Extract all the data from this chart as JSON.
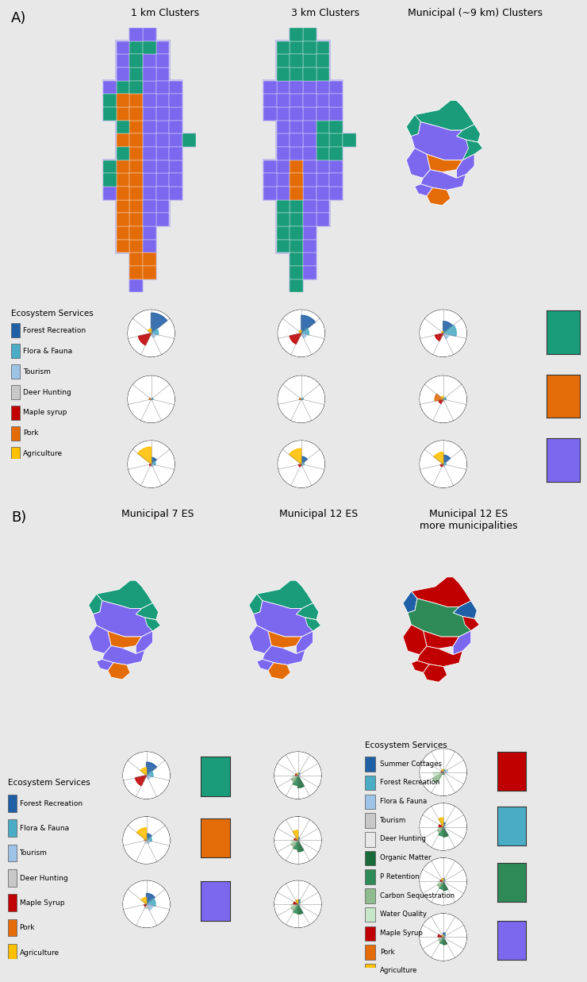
{
  "background_color": "#e8e8e8",
  "map_titles_a": [
    "1 km Clusters",
    "3 km Clusters",
    "Municipal (~9 km) Clusters"
  ],
  "map_titles_b": [
    "Municipal 7 ES",
    "Municipal 12 ES",
    "Municipal 12 ES\nmore municipalities"
  ],
  "legend_a_title": "Ecosystem Services",
  "legend_a_items": [
    [
      "Forest Recreation",
      "#1f5fa6"
    ],
    [
      "Flora & Fauna",
      "#4bacc6"
    ],
    [
      "Tourism",
      "#9dc3e6"
    ],
    [
      "Deer Hunting",
      "#c8c8c8"
    ],
    [
      "Maple syrup",
      "#c00000"
    ],
    [
      "Pork",
      "#e36c09"
    ],
    [
      "Agriculture",
      "#ffc000"
    ]
  ],
  "legend_b_left_title": "Ecosystem Services",
  "legend_b_left_items": [
    [
      "Forest Recreation",
      "#1f5fa6"
    ],
    [
      "Flora & Fauna",
      "#4bacc6"
    ],
    [
      "Tourism",
      "#9dc3e6"
    ],
    [
      "Deer Hunting",
      "#c8c8c8"
    ],
    [
      "Maple Syrup",
      "#c00000"
    ],
    [
      "Pork",
      "#e36c09"
    ],
    [
      "Agriculture",
      "#ffc000"
    ]
  ],
  "legend_b_right_title": "Ecosystem Services",
  "legend_b_right_items": [
    [
      "Summer Cottages",
      "#1f5fa6"
    ],
    [
      "Forest Recreation",
      "#4bacc6"
    ],
    [
      "Flora & Fauna",
      "#9dc3e6"
    ],
    [
      "Tourism",
      "#c8c8c8"
    ],
    [
      "Deer Hunting",
      "#e8e8e8"
    ],
    [
      "Organic Matter",
      "#1a6b3a"
    ],
    [
      "P Retention",
      "#2e8b57"
    ],
    [
      "Carbon Sequestration",
      "#8fbc8f"
    ],
    [
      "Water Quality",
      "#c8e6c9"
    ],
    [
      "Maple Syrup",
      "#c00000"
    ],
    [
      "Pork",
      "#e36c09"
    ],
    [
      "Agriculture",
      "#ffc000"
    ]
  ],
  "purple": "#7b68ee",
  "green": "#1a9b7a",
  "orange": "#e36c09",
  "color_squares_a": [
    "#1a9b7a",
    "#e36c09",
    "#7b68ee"
  ],
  "color_squares_b_left": [
    "#1a9b7a",
    "#e36c09",
    "#7b68ee"
  ],
  "color_squares_b_right": [
    "#c00000",
    "#4bacc6",
    "#2e8b57",
    "#7b68ee"
  ],
  "radar_colors_7": [
    "#1f5fa6",
    "#4bacc6",
    "#9dc3e6",
    "#c8c8c8",
    "#c00000",
    "#e36c09",
    "#ffc000"
  ],
  "radar_colors_12": [
    "#1f5fa6",
    "#4bacc6",
    "#9dc3e6",
    "#c8c8c8",
    "#e8e8e8",
    "#1a6b3a",
    "#2e8b57",
    "#8fbc8f",
    "#c8e6c9",
    "#c00000",
    "#e36c09",
    "#ffc000"
  ],
  "radar_a": {
    "row1": [
      [
        0.85,
        0.3,
        0.2,
        0.1,
        0.55,
        0.0,
        0.18
      ],
      [
        0.75,
        0.32,
        0.22,
        0.12,
        0.5,
        0.0,
        0.12
      ],
      [
        0.5,
        0.55,
        0.25,
        0.1,
        0.35,
        0.0,
        0.08
      ]
    ],
    "row2": [
      [
        0.0,
        0.08,
        0.0,
        0.0,
        0.0,
        0.08,
        0.0
      ],
      [
        0.0,
        0.08,
        0.0,
        0.0,
        0.0,
        0.08,
        0.0
      ],
      [
        0.0,
        0.12,
        0.0,
        0.1,
        0.2,
        0.35,
        0.12
      ]
    ],
    "row3": [
      [
        0.28,
        0.18,
        0.12,
        0.08,
        0.08,
        0.0,
        0.72
      ],
      [
        0.32,
        0.12,
        0.1,
        0.1,
        0.12,
        0.0,
        0.65
      ],
      [
        0.38,
        0.12,
        0.1,
        0.1,
        0.12,
        0.0,
        0.5
      ]
    ]
  },
  "radar_b_left": [
    [
      0.55,
      0.28,
      0.18,
      0.1,
      0.48,
      0.0,
      0.32
    ],
    [
      0.28,
      0.22,
      0.15,
      0.12,
      0.0,
      0.08,
      0.52
    ],
    [
      0.45,
      0.38,
      0.28,
      0.18,
      0.1,
      0.0,
      0.28
    ]
  ],
  "radar_b_mid": [
    [
      0.08,
      0.12,
      0.08,
      0.05,
      0.05,
      0.52,
      0.42,
      0.32,
      0.22,
      0.1,
      0.0,
      0.08
    ],
    [
      0.12,
      0.08,
      0.08,
      0.05,
      0.05,
      0.48,
      0.38,
      0.32,
      0.28,
      0.15,
      0.12,
      0.42
    ],
    [
      0.18,
      0.12,
      0.08,
      0.08,
      0.05,
      0.42,
      0.38,
      0.32,
      0.28,
      0.18,
      0.0,
      0.18
    ]
  ],
  "radar_b_right": [
    [
      0.08,
      0.12,
      0.18,
      0.05,
      0.05,
      0.08,
      0.08,
      0.52,
      0.42,
      0.08,
      0.0,
      0.12
    ],
    [
      0.18,
      0.08,
      0.08,
      0.05,
      0.05,
      0.42,
      0.38,
      0.28,
      0.22,
      0.18,
      0.08,
      0.38
    ],
    [
      0.12,
      0.08,
      0.08,
      0.05,
      0.05,
      0.38,
      0.32,
      0.28,
      0.22,
      0.12,
      0.0,
      0.12
    ],
    [
      0.18,
      0.12,
      0.08,
      0.06,
      0.05,
      0.32,
      0.28,
      0.22,
      0.18,
      0.22,
      0.05,
      0.08
    ]
  ]
}
